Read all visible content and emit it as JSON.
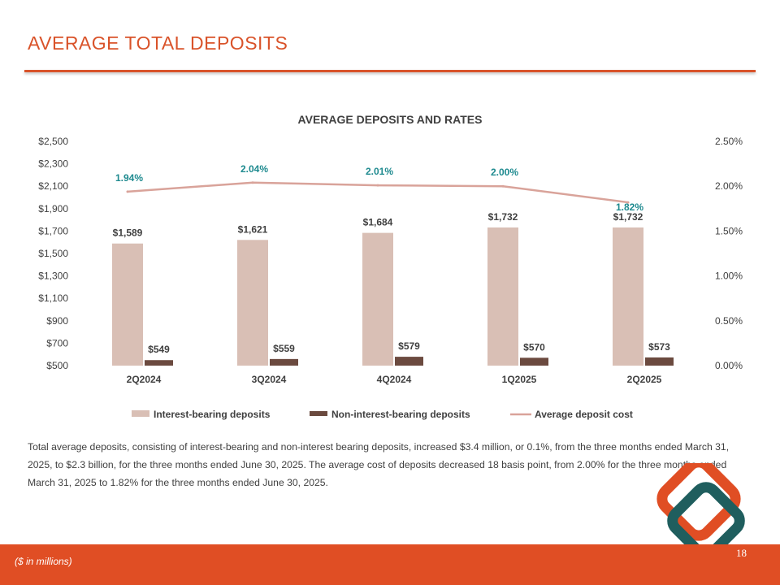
{
  "page": {
    "title": "AVERAGE TOTAL DEPOSITS",
    "body_text": "Total average deposits, consisting of interest-bearing and non-interest bearing deposits, increased $3.4 million, or 0.1%, from the three months ended March 31, 2025, to $2.3 billion, for the three months ended June 30, 2025. The average cost of deposits decreased 18 basis point, from 2.00% for the three months ended March 31, 2025 to 1.82% for the three months ended June 30, 2025.",
    "footnote": "($ in millions)",
    "page_number": "18"
  },
  "colors": {
    "accent": "#D9532A",
    "footer": "#E04E24",
    "interest_bearing": "#D9BFB5",
    "non_interest_bearing": "#6B4A3F",
    "deposit_cost": "#D9A39A",
    "rate_label": "#1E8A8F",
    "logo_teal": "#1F5E5E",
    "logo_orange": "#E04E24"
  },
  "chart_data": {
    "type": "bar",
    "title": "AVERAGE DEPOSITS AND RATES",
    "categories": [
      "2Q2024",
      "3Q2024",
      "4Q2024",
      "1Q2025",
      "2Q2025"
    ],
    "series": [
      {
        "name": "Interest-bearing deposits",
        "type": "bar",
        "axis": "left",
        "values": [
          1589,
          1621,
          1684,
          1732,
          1732
        ],
        "labels": [
          "$1,589",
          "$1,621",
          "$1,684",
          "$1,732",
          "$1,732"
        ]
      },
      {
        "name": "Non-interest-bearing deposits",
        "type": "bar",
        "axis": "left",
        "values": [
          549,
          559,
          579,
          570,
          573
        ],
        "labels": [
          "$549",
          "$559",
          "$579",
          "$570",
          "$573"
        ]
      },
      {
        "name": "Average deposit cost",
        "type": "line",
        "axis": "right",
        "values": [
          1.94,
          2.04,
          2.01,
          2.0,
          1.82
        ],
        "labels": [
          "1.94%",
          "2.04%",
          "2.01%",
          "2.00%",
          "1.82%"
        ]
      }
    ],
    "y_left": {
      "min": 500,
      "max": 2500,
      "ticks": [
        "$2,500",
        "$2,300",
        "$2,100",
        "$1,900",
        "$1,700",
        "$1,500",
        "$1,300",
        "$1,100",
        "$900",
        "$700",
        "$500"
      ]
    },
    "y_right": {
      "min": 0,
      "max": 2.5,
      "ticks": [
        "2.50%",
        "2.00%",
        "1.50%",
        "1.00%",
        "0.50%",
        "0.00%"
      ]
    },
    "legend_position": "bottom",
    "grid": false
  }
}
